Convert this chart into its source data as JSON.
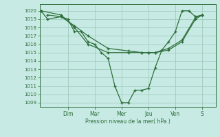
{
  "background_color": "#c8eae4",
  "grid_color": "#a0ccbe",
  "line_color": "#2d6e3a",
  "ylabel": "Pression niveau de la mer( hPa )",
  "ylim": [
    1008.5,
    1020.8
  ],
  "yticks": [
    1009,
    1010,
    1011,
    1012,
    1013,
    1014,
    1015,
    1016,
    1017,
    1018,
    1019,
    1020
  ],
  "day_labels": [
    "Dim",
    "Mar",
    "Mer",
    "Jeu",
    "Ven",
    "S"
  ],
  "day_positions": [
    2,
    4,
    6,
    8,
    10,
    12
  ],
  "xlim": [
    -0.1,
    13.0
  ],
  "series": [
    {
      "x": [
        0,
        0.5,
        1.5,
        2.0,
        2.5,
        3.0,
        3.5,
        4.0,
        4.5,
        5.0,
        5.5,
        6.0,
        6.5,
        7.0,
        7.5,
        8.0,
        8.5,
        9.0,
        9.5,
        10.0,
        10.5,
        11.0,
        11.5,
        12.0
      ],
      "y": [
        1020,
        1019,
        1019.3,
        1019.0,
        1017.5,
        1017.5,
        1016.3,
        1016.0,
        1015.0,
        1014.3,
        1011.0,
        1009.0,
        1009.0,
        1010.5,
        1010.5,
        1010.7,
        1013.2,
        1015.3,
        1016.3,
        1017.5,
        1020.0,
        1020.0,
        1019.3,
        1019.5
      ]
    },
    {
      "x": [
        0,
        1.5,
        2.5,
        3.5,
        5.0,
        6.5,
        7.5,
        8.0,
        8.5,
        9.5,
        10.5,
        11.5,
        12.0
      ],
      "y": [
        1020,
        1019.5,
        1018.0,
        1016.0,
        1015.0,
        1015.0,
        1015.0,
        1015.0,
        1015.0,
        1015.3,
        1016.3,
        1019.0,
        1019.5
      ]
    },
    {
      "x": [
        0.5,
        1.5,
        2.5,
        3.5,
        5.0,
        6.5,
        7.5,
        8.0,
        8.5,
        9.5,
        10.5,
        11.5,
        12.0
      ],
      "y": [
        1019.5,
        1019.3,
        1018.2,
        1017.0,
        1015.5,
        1015.2,
        1015.0,
        1015.0,
        1015.0,
        1015.5,
        1016.5,
        1019.2,
        1019.5
      ]
    }
  ]
}
